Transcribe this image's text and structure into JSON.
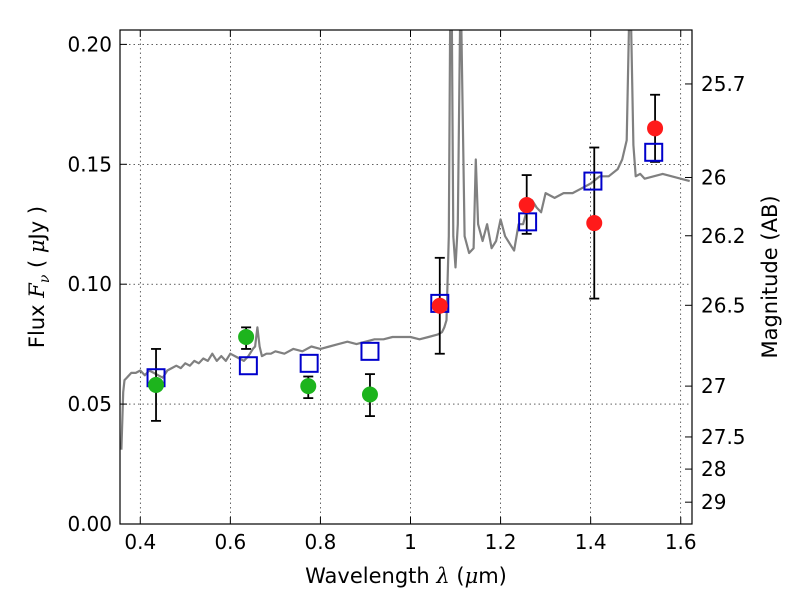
{
  "chart_data": {
    "type": "scatter",
    "xlabel": {
      "prefix": "Wavelength  ",
      "symbol": "λ",
      "unit_open": " (",
      "unit_symbol": "μ",
      "unit_rest": "m)"
    },
    "ylabel": {
      "prefix": "Flux  ",
      "symbol": "F",
      "subscript": "ν",
      "unit_open": "  ( ",
      "unit_symbol": "μ",
      "unit_rest": "Jy )"
    },
    "y2label": "Magnitude (AB)",
    "xlim": [
      0.355,
      1.625
    ],
    "ylim": [
      0.0,
      0.206
    ],
    "grid": true,
    "x_ticks": [
      {
        "value": 0.4,
        "label": "0.4"
      },
      {
        "value": 0.6,
        "label": "0.6"
      },
      {
        "value": 0.8,
        "label": "0.8"
      },
      {
        "value": 1.0,
        "label": "1"
      },
      {
        "value": 1.2,
        "label": "1.2"
      },
      {
        "value": 1.4,
        "label": "1.4"
      },
      {
        "value": 1.6,
        "label": "1.6"
      }
    ],
    "y_ticks": [
      {
        "value": 0.0,
        "label": "0.00"
      },
      {
        "value": 0.05,
        "label": "0.05"
      },
      {
        "value": 0.1,
        "label": "0.10"
      },
      {
        "value": 0.15,
        "label": "0.15"
      },
      {
        "value": 0.2,
        "label": "0.20"
      }
    ],
    "mag_ticks": [
      {
        "flux": 0.1835,
        "label": "25.7"
      },
      {
        "flux": 0.1445,
        "label": "26"
      },
      {
        "flux": 0.1202,
        "label": "26.2"
      },
      {
        "flux": 0.0912,
        "label": "26.5"
      },
      {
        "flux": 0.0575,
        "label": "27"
      },
      {
        "flux": 0.0363,
        "label": "27.5"
      },
      {
        "flux": 0.0229,
        "label": "28"
      },
      {
        "flux": 0.0091,
        "label": "29"
      }
    ],
    "series": [
      {
        "style": "line",
        "color": "#808080",
        "x": [
          0.358,
          0.362,
          0.365,
          0.37,
          0.38,
          0.39,
          0.4,
          0.41,
          0.42,
          0.43,
          0.44,
          0.45,
          0.46,
          0.47,
          0.48,
          0.49,
          0.5,
          0.51,
          0.52,
          0.53,
          0.54,
          0.55,
          0.56,
          0.57,
          0.58,
          0.59,
          0.6,
          0.61,
          0.62,
          0.63,
          0.64,
          0.65,
          0.655,
          0.66,
          0.665,
          0.67,
          0.68,
          0.69,
          0.7,
          0.72,
          0.74,
          0.76,
          0.78,
          0.8,
          0.82,
          0.84,
          0.86,
          0.88,
          0.9,
          0.92,
          0.94,
          0.96,
          0.98,
          1.0,
          1.02,
          1.04,
          1.06,
          1.07,
          1.075,
          1.08,
          1.085,
          1.088,
          1.092,
          1.095,
          1.1,
          1.105,
          1.11,
          1.113,
          1.12,
          1.13,
          1.14,
          1.145,
          1.15,
          1.16,
          1.17,
          1.18,
          1.19,
          1.2,
          1.21,
          1.22,
          1.23,
          1.24,
          1.25,
          1.26,
          1.27,
          1.28,
          1.29,
          1.3,
          1.32,
          1.34,
          1.36,
          1.38,
          1.4,
          1.42,
          1.44,
          1.46,
          1.47,
          1.48,
          1.485,
          1.49,
          1.495,
          1.5,
          1.51,
          1.52,
          1.54,
          1.56,
          1.58,
          1.6,
          1.62
        ],
        "y": [
          0.031,
          0.055,
          0.06,
          0.061,
          0.063,
          0.063,
          0.064,
          0.062,
          0.064,
          0.063,
          0.062,
          0.061,
          0.064,
          0.065,
          0.066,
          0.065,
          0.067,
          0.066,
          0.068,
          0.067,
          0.069,
          0.068,
          0.071,
          0.068,
          0.07,
          0.068,
          0.071,
          0.07,
          0.069,
          0.068,
          0.07,
          0.073,
          0.074,
          0.082,
          0.074,
          0.07,
          0.071,
          0.071,
          0.072,
          0.071,
          0.073,
          0.072,
          0.074,
          0.073,
          0.074,
          0.075,
          0.076,
          0.075,
          0.076,
          0.077,
          0.077,
          0.078,
          0.078,
          0.078,
          0.077,
          0.078,
          0.079,
          0.08,
          0.082,
          0.085,
          0.12,
          0.206,
          0.206,
          0.12,
          0.107,
          0.125,
          0.206,
          0.206,
          0.12,
          0.113,
          0.115,
          0.152,
          0.125,
          0.118,
          0.125,
          0.115,
          0.118,
          0.127,
          0.12,
          0.117,
          0.114,
          0.125,
          0.125,
          0.132,
          0.135,
          0.132,
          0.13,
          0.138,
          0.136,
          0.138,
          0.138,
          0.14,
          0.142,
          0.145,
          0.145,
          0.148,
          0.152,
          0.16,
          0.206,
          0.206,
          0.158,
          0.145,
          0.146,
          0.144,
          0.145,
          0.146,
          0.145,
          0.144,
          0.143
        ]
      },
      {
        "style": "circle",
        "color": "#1db41d",
        "x": [
          0.435,
          0.635,
          0.773,
          0.91
        ],
        "y": [
          0.058,
          0.078,
          0.0575,
          0.054
        ],
        "yerr_low": [
          0.043,
          0.073,
          0.0525,
          0.045
        ],
        "yerr_high": [
          0.073,
          0.082,
          0.0615,
          0.0625
        ]
      },
      {
        "style": "circle",
        "color": "#ff1a1a",
        "x": [
          1.065,
          1.258,
          1.408,
          1.543
        ],
        "y": [
          0.091,
          0.133,
          0.1255,
          0.165
        ],
        "yerr_low": [
          0.071,
          0.121,
          0.094,
          0.151
        ],
        "yerr_high": [
          0.111,
          0.1455,
          0.157,
          0.179
        ]
      },
      {
        "style": "square",
        "color": "#0000cc",
        "x": [
          0.435,
          0.64,
          0.775,
          0.91,
          1.065,
          1.26,
          1.405,
          1.54
        ],
        "y": [
          0.061,
          0.066,
          0.067,
          0.072,
          0.092,
          0.126,
          0.143,
          0.155
        ]
      }
    ]
  }
}
